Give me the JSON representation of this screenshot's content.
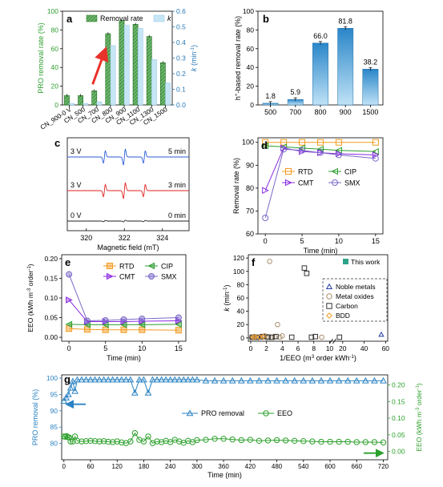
{
  "colors": {
    "green": "#2e9e2e",
    "green_fill": "#6db66d",
    "ltblue": "#c6e6f6",
    "blue_axis": "#2878b5",
    "bar_b_top": "#2a86c9",
    "bar_b_bottom": "#bfe2f6",
    "orange": "#f39a1e",
    "purple": "#8a2be2",
    "lav": "#7b68c8",
    "navy": "#1f3aa8",
    "brown": "#a98f6e",
    "epr_blue": "#2a5bd7",
    "epr_red": "#e02020",
    "epr_black": "#222222",
    "arrow_red": "#e8322a",
    "teal_legend": "#2ea38a",
    "g_blue": "#2b82c2",
    "g_green": "#2ca02c"
  },
  "chart_data": [
    {
      "panel": "a",
      "type": "bar",
      "categories": [
        "CN_900-0 V",
        "CN_500",
        "CN_700",
        "CN_800",
        "CN_900",
        "CN_1100",
        "CN_1300",
        "CN_1500"
      ],
      "ylabel": "PRO removal rate (%)",
      "y2label_prefix": "k",
      "y2label_unit": " (min",
      "y2label_sup": "-1",
      "y2label_end": ")",
      "ylim": [
        0,
        100
      ],
      "y2lim": [
        0,
        0.6
      ],
      "yticks": [
        "0",
        "20",
        "40",
        "60",
        "80",
        "100"
      ],
      "y2ticks": [
        "0.0",
        "0.1",
        "0.2",
        "0.3",
        "0.4",
        "0.5",
        "0.6"
      ],
      "legend_removal": "Removal rate",
      "legend_k": "k",
      "series": [
        {
          "name": "Removal rate",
          "values": [
            10,
            10,
            15,
            76,
            90,
            86,
            73,
            45
          ]
        },
        {
          "name": "k",
          "values": [
            0.01,
            0.01,
            0.02,
            0.38,
            0.51,
            0.49,
            0.29,
            0.14
          ]
        }
      ]
    },
    {
      "panel": "b",
      "type": "bar",
      "categories": [
        "500",
        "700",
        "800",
        "900",
        "1500"
      ],
      "values": [
        1.8,
        5.9,
        66.0,
        81.8,
        38.2
      ],
      "value_labels": [
        "1.8",
        "5.9",
        "66.0",
        "81.8",
        "38.2"
      ],
      "ylabel_pre": "h",
      "ylabel_sup": "+",
      "ylabel_post": "-based removal rate (%)",
      "ylim": [
        0,
        100
      ],
      "yticks": [
        "0",
        "20",
        "40",
        "60",
        "80",
        "100"
      ]
    },
    {
      "panel": "c",
      "type": "line",
      "xlabel": "Magnetic field (mT)",
      "xticks": [
        "320",
        "322",
        "324"
      ],
      "traces": [
        {
          "left_label": "3 V",
          "right_label": "5 min"
        },
        {
          "left_label": "3 V",
          "right_label": "3 min"
        },
        {
          "left_label": "0 V",
          "right_label": "0 min"
        }
      ]
    },
    {
      "panel": "d",
      "type": "line",
      "xlabel": "Time (min)",
      "ylabel": "Removal rate (%)",
      "xlim": [
        -1,
        16
      ],
      "ylim": [
        60,
        102
      ],
      "xticks": [
        "0",
        "5",
        "10",
        "15"
      ],
      "yticks": [
        "60",
        "70",
        "80",
        "90",
        "100"
      ],
      "x": [
        0,
        2.5,
        5,
        7.5,
        10,
        15
      ],
      "series": [
        {
          "name": "RTD",
          "values": [
            100,
            100,
            100,
            100,
            100,
            100
          ]
        },
        {
          "name": "CIP",
          "values": [
            98.5,
            98,
            97.5,
            97,
            96.5,
            96
          ]
        },
        {
          "name": "CMT",
          "values": [
            79,
            97.5,
            96,
            95.5,
            95,
            94.5
          ]
        },
        {
          "name": "SMX",
          "values": [
            67,
            97,
            96.5,
            95.5,
            94.5,
            93
          ]
        }
      ]
    },
    {
      "panel": "e",
      "type": "line",
      "xlabel": "Time (min)",
      "ylabel_pre": "EEO (kWh m",
      "ylabel_sup": "-3",
      "ylabel_post": " order",
      "ylabel_sup2": "-1",
      "ylabel_end": ")",
      "xlim": [
        -1,
        16
      ],
      "ylim": [
        -0.01,
        0.21
      ],
      "xticks": [
        "0",
        "5",
        "10",
        "15"
      ],
      "yticks": [
        "0.00",
        "0.05",
        "0.10",
        "0.15",
        "0.20"
      ],
      "x": [
        0,
        2.5,
        5,
        7.5,
        10,
        15
      ],
      "series": [
        {
          "name": "RTD",
          "values": [
            0.022,
            0.02,
            0.019,
            0.019,
            0.019,
            0.018
          ]
        },
        {
          "name": "CIP",
          "values": [
            0.033,
            0.032,
            0.032,
            0.032,
            0.032,
            0.033
          ]
        },
        {
          "name": "CMT",
          "values": [
            0.095,
            0.04,
            0.04,
            0.04,
            0.041,
            0.042
          ]
        },
        {
          "name": "SMX",
          "values": [
            0.16,
            0.042,
            0.043,
            0.045,
            0.047,
            0.05
          ]
        }
      ]
    },
    {
      "panel": "f",
      "type": "scatter",
      "xlabel_pre": "1/EEO (m",
      "xlabel_sup": "3",
      "xlabel_post": " order kWh",
      "xlabel_sup2": "-1",
      "xlabel_end": ")",
      "ylabel_pre": "k",
      "ylabel_mid": " (min",
      "ylabel_sup": "-1",
      "ylabel_end": ")",
      "ylim": [
        -5,
        125
      ],
      "xticks": [
        "0",
        "2",
        "4",
        "6",
        "8",
        "10",
        "20",
        "40",
        "60"
      ],
      "yticks": [
        "0",
        "20",
        "40",
        "60",
        "80",
        "100",
        "120"
      ],
      "series": [
        {
          "name": "This work",
          "points": []
        },
        {
          "name": "Noble metals",
          "points": [
            [
              0.2,
              0.5
            ],
            [
              0.5,
              1
            ],
            [
              1,
              0.5
            ],
            [
              56,
              5
            ]
          ]
        },
        {
          "name": "Metal oxides",
          "points": [
            [
              0.1,
              0.5
            ],
            [
              0.3,
              1
            ],
            [
              0.5,
              2
            ],
            [
              1,
              0.5
            ],
            [
              1.2,
              1.5
            ],
            [
              1.5,
              1
            ],
            [
              1.8,
              3
            ],
            [
              2,
              1
            ],
            [
              2.2,
              2
            ],
            [
              2.4,
              115
            ],
            [
              2.6,
              1
            ],
            [
              3,
              1.5
            ],
            [
              3.4,
              20
            ],
            [
              3.7,
              1
            ],
            [
              4,
              3
            ],
            [
              9,
              1
            ]
          ]
        },
        {
          "name": "Carbon",
          "points": [
            [
              0.2,
              1
            ],
            [
              0.8,
              1
            ],
            [
              1.5,
              2
            ],
            [
              2.2,
              1
            ],
            [
              2.7,
              1
            ],
            [
              3.2,
              2
            ],
            [
              5.2,
              1
            ],
            [
              6.8,
              105
            ],
            [
              7.1,
              97
            ],
            [
              7.7,
              1
            ],
            [
              8.2,
              2
            ],
            [
              17,
              1
            ]
          ]
        },
        {
          "name": "BDD",
          "points": [
            [
              0.3,
              1
            ],
            [
              0.6,
              1.5
            ],
            [
              1.1,
              1
            ],
            [
              1.6,
              2
            ]
          ]
        }
      ]
    },
    {
      "panel": "g",
      "type": "line",
      "xlabel": "Time (min)",
      "ylabel": "PRO removal (%)",
      "y2label_pre": "EEO (kWh m",
      "y2label_sup": "-3",
      "y2label_post": " order",
      "y2label_sup2": "-1",
      "y2label_end": ")",
      "xlim": [
        -5,
        730
      ],
      "ylim": [
        75,
        101
      ],
      "y2lim": [
        -0.025,
        0.23
      ],
      "xticks": [
        "0",
        "60",
        "120",
        "180",
        "240",
        "300",
        "360",
        "420",
        "480",
        "540",
        "600",
        "660",
        "720"
      ],
      "yticks": [
        "80",
        "85",
        "90",
        "95",
        "100"
      ],
      "y2ticks": [
        "0.00",
        "0.05",
        "0.10",
        "0.15",
        "0.20"
      ],
      "series": [
        {
          "name": "PRO removal",
          "axis": "left",
          "x": [
            0,
            5,
            10,
            15,
            20,
            25,
            30,
            40,
            50,
            60,
            70,
            80,
            90,
            100,
            110,
            120,
            130,
            140,
            150,
            160,
            170,
            180,
            190,
            200,
            210,
            220,
            230,
            240,
            250,
            260,
            270,
            280,
            290,
            300,
            320,
            340,
            360,
            380,
            400,
            420,
            440,
            460,
            480,
            500,
            520,
            540,
            560,
            580,
            600,
            620,
            640,
            660,
            680,
            700,
            720
          ],
          "values": [
            93,
            94,
            95,
            97,
            99,
            96,
            99.5,
            99.5,
            99.5,
            99.5,
            99.5,
            99.5,
            99.5,
            99.5,
            99.5,
            99.5,
            99.5,
            99.5,
            99.5,
            95.5,
            99.5,
            99.5,
            95.5,
            99.5,
            99.5,
            99.5,
            99.5,
            99.5,
            99.5,
            99.5,
            99.5,
            99.5,
            99.5,
            99.5,
            99.2,
            99.2,
            99.2,
            99.2,
            99.2,
            99.2,
            99.2,
            99.2,
            99.2,
            99.2,
            99.2,
            99.2,
            99.2,
            99.2,
            99.2,
            99.2,
            99.2,
            99.2,
            99.2,
            99.2,
            99.2
          ]
        },
        {
          "name": "EEO",
          "axis": "right",
          "x": [
            0,
            3,
            6,
            9,
            12,
            15,
            20,
            25,
            30,
            40,
            50,
            60,
            70,
            80,
            90,
            100,
            110,
            120,
            130,
            140,
            150,
            160,
            170,
            180,
            190,
            200,
            210,
            220,
            230,
            240,
            250,
            260,
            270,
            280,
            290,
            300,
            320,
            340,
            360,
            380,
            400,
            420,
            440,
            460,
            480,
            500,
            520,
            540,
            560,
            580,
            600,
            620,
            640,
            660,
            680,
            700,
            720
          ],
          "values": [
            0.045,
            0.044,
            0.046,
            0.043,
            0.042,
            0.03,
            0.03,
            0.045,
            0.032,
            0.03,
            0.031,
            0.032,
            0.031,
            0.03,
            0.031,
            0.029,
            0.028,
            0.03,
            0.027,
            0.025,
            0.03,
            0.055,
            0.035,
            0.03,
            0.045,
            0.025,
            0.03,
            0.028,
            0.032,
            0.028,
            0.035,
            0.03,
            0.026,
            0.032,
            0.028,
            0.034,
            0.035,
            0.038,
            0.038,
            0.036,
            0.034,
            0.035,
            0.032,
            0.033,
            0.034,
            0.033,
            0.032,
            0.031,
            0.03,
            0.029,
            0.029,
            0.029,
            0.029,
            0.028,
            0.028,
            0.028,
            0.027
          ]
        }
      ],
      "legend": [
        "PRO removal",
        "EEO"
      ]
    }
  ]
}
